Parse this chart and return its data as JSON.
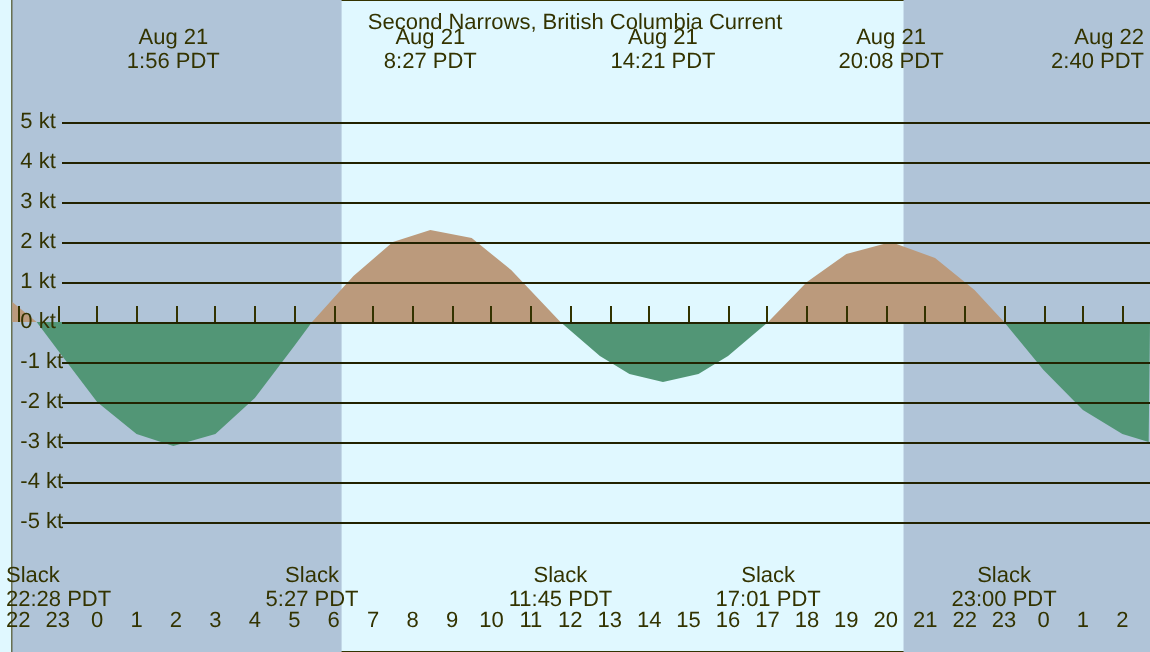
{
  "chart_data": {
    "type": "area",
    "title": "Second Narrows, British Columbia Current",
    "series": [
      {
        "color": "#bb9a7c",
        "x": [
          "--08-20T21:51",
          "--08-20T22:28",
          null,
          "--08-21T05:27",
          "--08-21T06:30",
          "--08-21T07:30",
          "--08-21T08:27",
          "--08-21T09:30",
          "--08-21T10:30",
          "--08-21T11:45",
          null,
          "--08-21T17:01",
          "--08-21T18:00",
          "--08-21T19:00",
          "--08-21T20:08",
          "--08-21T21:15",
          "--08-21T22:15",
          "--08-21T23:00"
        ],
        "values": [
          0.5,
          0,
          null,
          0,
          1.15,
          2.0,
          2.3,
          2.1,
          1.3,
          0,
          null,
          0,
          1.0,
          1.7,
          2.0,
          1.6,
          0.8,
          0
        ]
      },
      {
        "color": "#529676",
        "x": [
          "--08-20T22:28",
          "--08-20T23:00",
          "--08-21T00:00",
          "--08-21T01:00",
          "--08-21T01:56",
          "--08-21T03:00",
          "--08-21T04:00",
          "--08-21T05:00",
          "--08-21T05:27",
          null,
          "--08-21T11:45",
          "--08-21T12:45",
          "--08-21T13:30",
          "--08-21T14:21",
          "--08-21T15:15",
          "--08-21T16:00",
          "--08-21T17:01",
          null,
          "--08-21T23:00",
          "--08-22T00:00",
          "--08-22T01:00",
          "--08-22T02:00",
          "--08-22T02:40",
          "--08-22T02:42"
        ],
        "values": [
          0,
          -0.7,
          -2.0,
          -2.8,
          -3.1,
          -2.8,
          -1.9,
          -0.6,
          0,
          null,
          0,
          -0.85,
          -1.3,
          -1.5,
          -1.3,
          -0.85,
          0,
          null,
          0,
          -1.2,
          -2.2,
          -2.8,
          -3.0,
          -3.0
        ]
      }
    ],
    "xlim": [
      "--08-20T21:51",
      "--08-22T02:42"
    ],
    "xticks": [
      {
        "value": "--08-20T22:00",
        "label": "22"
      },
      {
        "value": "--08-20T23:00",
        "label": "23"
      },
      {
        "value": "--08-21T00:00",
        "label": "0"
      },
      {
        "value": "--08-21T01:00",
        "label": "1"
      },
      {
        "value": "--08-21T02:00",
        "label": "2"
      },
      {
        "value": "--08-21T03:00",
        "label": "3"
      },
      {
        "value": "--08-21T04:00",
        "label": "4"
      },
      {
        "value": "--08-21T05:00",
        "label": "5"
      },
      {
        "value": "--08-21T06:00",
        "label": "6"
      },
      {
        "value": "--08-21T07:00",
        "label": "7"
      },
      {
        "value": "--08-21T08:00",
        "label": "8"
      },
      {
        "value": "--08-21T09:00",
        "label": "9"
      },
      {
        "value": "--08-21T10:00",
        "label": "10"
      },
      {
        "value": "--08-21T11:00",
        "label": "11"
      },
      {
        "value": "--08-21T12:00",
        "label": "12"
      },
      {
        "value": "--08-21T13:00",
        "label": "13"
      },
      {
        "value": "--08-21T14:00",
        "label": "14"
      },
      {
        "value": "--08-21T15:00",
        "label": "15"
      },
      {
        "value": "--08-21T16:00",
        "label": "16"
      },
      {
        "value": "--08-21T17:00",
        "label": "17"
      },
      {
        "value": "--08-21T18:00",
        "label": "18"
      },
      {
        "value": "--08-21T19:00",
        "label": "19"
      },
      {
        "value": "--08-21T20:00",
        "label": "20"
      },
      {
        "value": "--08-21T21:00",
        "label": "21"
      },
      {
        "value": "--08-21T22:00",
        "label": "22"
      },
      {
        "value": "--08-21T23:00",
        "label": "23"
      },
      {
        "value": "--08-22T00:00",
        "label": "0"
      },
      {
        "value": "--08-22T01:00",
        "label": "1"
      },
      {
        "value": "--08-22T02:00",
        "label": "2"
      }
    ],
    "ylim": [
      -8.25,
      8.05
    ],
    "yticks": [
      {
        "value": -5,
        "label": "-5 kt"
      },
      {
        "value": -4,
        "label": "-4 kt"
      },
      {
        "value": -3,
        "label": "-3 kt"
      },
      {
        "value": -2,
        "label": "-2 kt"
      },
      {
        "value": -1,
        "label": "-1 kt"
      },
      {
        "value": 0,
        "label": "0 kt"
      },
      {
        "value": 1,
        "label": "1 kt"
      },
      {
        "value": 2,
        "label": "2 kt"
      },
      {
        "value": 3,
        "label": "3 kt"
      },
      {
        "value": 4,
        "label": "4 kt"
      },
      {
        "value": 5,
        "label": "5 kt"
      }
    ],
    "grid": "y",
    "bands": [
      {
        "axis": "x",
        "from": "--08-20T21:51",
        "to": "--08-21T06:12",
        "color": "#b0c4d8"
      },
      {
        "axis": "x",
        "from": "--08-21T20:27",
        "to": "--08-22T02:42",
        "color": "#b0c4d8"
      }
    ],
    "annotations": [
      "Aug 21\n1:56 PDT",
      "Aug 21\n8:27 PDT",
      "Aug 21\n14:21 PDT",
      "Aug 21\n20:08 PDT",
      "Aug 22\n2:40 PDT",
      "Slack\n22:28 PDT",
      "Slack\n5:27 PDT",
      "Slack\n11:45 PDT",
      "Slack\n17:01 PDT",
      "Slack\n23:00 PDT"
    ]
  }
}
